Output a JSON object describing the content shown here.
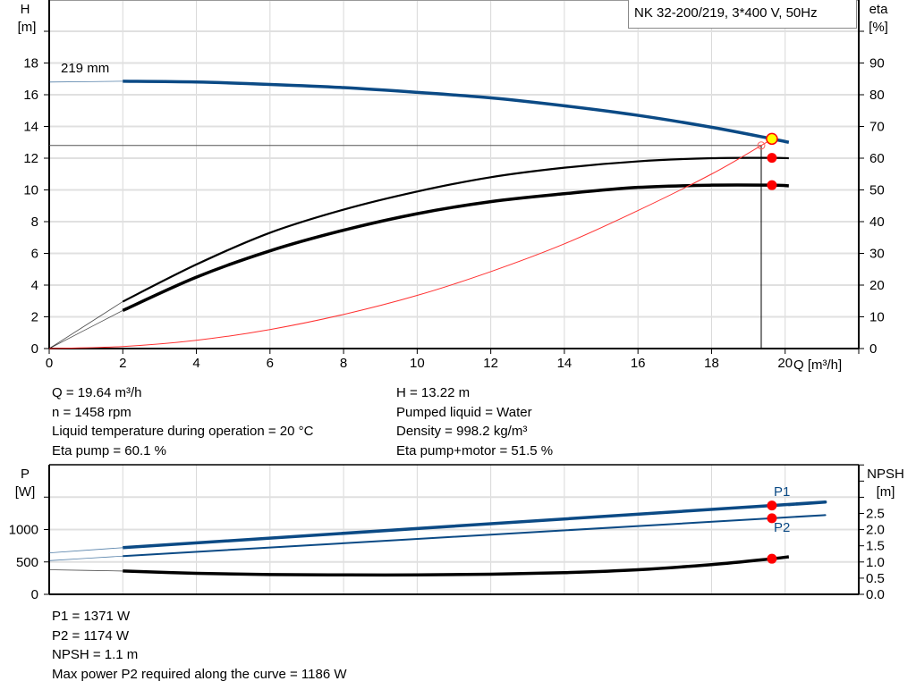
{
  "chart_data": [
    {
      "type": "line",
      "title": "NK 32-200/219, 3*400 V, 50Hz",
      "xlabel": "Q [m³/h]",
      "ylabel": "H",
      "ylabel_unit": "[m]",
      "y2label": "eta",
      "y2label_unit": "[%]",
      "xlim": [
        0,
        22
      ],
      "ylim": [
        0,
        20
      ],
      "y2lim": [
        0,
        100
      ],
      "grid": true,
      "x_ticks": [
        "0",
        "2",
        "4",
        "6",
        "8",
        "10",
        "12",
        "14",
        "16",
        "18",
        "20"
      ],
      "y_ticks": [
        "0",
        "2",
        "4",
        "6",
        "8",
        "10",
        "12",
        "14",
        "16",
        "18"
      ],
      "y2_ticks": [
        "0",
        "10",
        "20",
        "30",
        "40",
        "50",
        "60",
        "70",
        "80",
        "90"
      ],
      "annotations": [
        "219 mm"
      ],
      "series": [
        {
          "key": "head",
          "axis": "H",
          "color": "#0b4a85",
          "x": [
            0,
            2,
            4,
            6,
            8,
            10,
            12,
            14,
            16,
            18,
            19.64,
            20.1
          ],
          "y": [
            16.8,
            16.85,
            16.8,
            16.65,
            16.45,
            16.15,
            15.8,
            15.3,
            14.7,
            13.95,
            13.22,
            13.0
          ]
        },
        {
          "key": "eta_pump",
          "axis": "eta",
          "color": "#000000",
          "x": [
            0,
            2,
            4,
            6,
            8,
            10,
            12,
            14,
            16,
            18,
            19.64,
            20.1
          ],
          "y": [
            0,
            14.8,
            26.5,
            36.5,
            43.8,
            49.5,
            54,
            57,
            59,
            60,
            60.1,
            60
          ]
        },
        {
          "key": "eta_pump_motor",
          "axis": "eta",
          "color": "#000000",
          "x": [
            0,
            2,
            4,
            6,
            8,
            10,
            12,
            14,
            16,
            18,
            19.64,
            20.1
          ],
          "y": [
            0,
            12,
            22.5,
            30.8,
            37.3,
            42.5,
            46.3,
            48.8,
            50.8,
            51.5,
            51.5,
            51.3
          ]
        },
        {
          "key": "system_curve",
          "axis": "H",
          "color": "#ff3030",
          "x": [
            0,
            2,
            4,
            6,
            8,
            10,
            12,
            14,
            16,
            18,
            19.35,
            19.64
          ],
          "y": [
            0,
            0.13,
            0.52,
            1.2,
            2.15,
            3.35,
            4.85,
            6.6,
            8.7,
            11.0,
            12.8,
            13.22
          ]
        }
      ],
      "duty_point": {
        "Q": 19.64,
        "H": 13.22,
        "eta_pump": 60.1,
        "eta_pump_motor": 51.5,
        "color": "#ffff00"
      },
      "reference_point": {
        "Q": 19.35,
        "H": 12.8
      }
    },
    {
      "type": "line",
      "xlabel": "",
      "ylabel": "P",
      "ylabel_unit": "[W]",
      "y2label": "NPSH",
      "y2label_unit": "[m]",
      "xlim": [
        0,
        22
      ],
      "ylim": [
        0,
        2000
      ],
      "y2lim": [
        0,
        4
      ],
      "grid": true,
      "y_ticks": [
        "0",
        "500",
        "1000"
      ],
      "y2_ticks": [
        "0.0",
        "0.5",
        "1.0",
        "1.5",
        "2.0",
        "2.5"
      ],
      "series": [
        {
          "name": "P1",
          "axis": "P",
          "color": "#0b4a85",
          "x": [
            0,
            2,
            19.64,
            20.1
          ],
          "y": [
            640,
            720,
            1371,
            1385
          ]
        },
        {
          "name": "P2",
          "axis": "P",
          "color": "#0b4a85",
          "x": [
            0,
            2,
            19.64,
            20.1
          ],
          "y": [
            520,
            590,
            1174,
            1190
          ]
        },
        {
          "key": "npsh",
          "axis": "NPSH",
          "color": "#000000",
          "x": [
            0,
            2,
            4,
            6,
            8,
            10,
            12,
            14,
            16,
            18,
            19.64,
            20.1
          ],
          "y": [
            0.76,
            0.72,
            0.65,
            0.61,
            0.6,
            0.6,
            0.62,
            0.67,
            0.76,
            0.92,
            1.1,
            1.16
          ]
        }
      ],
      "duty_point": {
        "Q": 19.64,
        "P1": 1371,
        "P2": 1174,
        "NPSH": 1.1
      }
    }
  ],
  "info_top": {
    "left": [
      "Q = 19.64 m³/h",
      "n = 1458 rpm",
      "Liquid temperature during operation = 20 °C",
      "Eta pump = 60.1 %"
    ],
    "right": [
      "H = 13.22 m",
      "Pumped liquid = Water",
      "Density = 998.2 kg/m³",
      "Eta pump+motor = 51.5 %"
    ]
  },
  "info_bottom": [
    "P1 = 1371 W",
    "P2 = 1174 W",
    "NPSH = 1.1 m",
    "Max power P2 required along the curve = 1186 W"
  ],
  "colors": {
    "curve_blue": "#0b4a85",
    "marker_red": "#ff0000",
    "system_red": "#ff3030",
    "duty_yellow": "#ffff00",
    "grid": "#d8d8d8"
  }
}
